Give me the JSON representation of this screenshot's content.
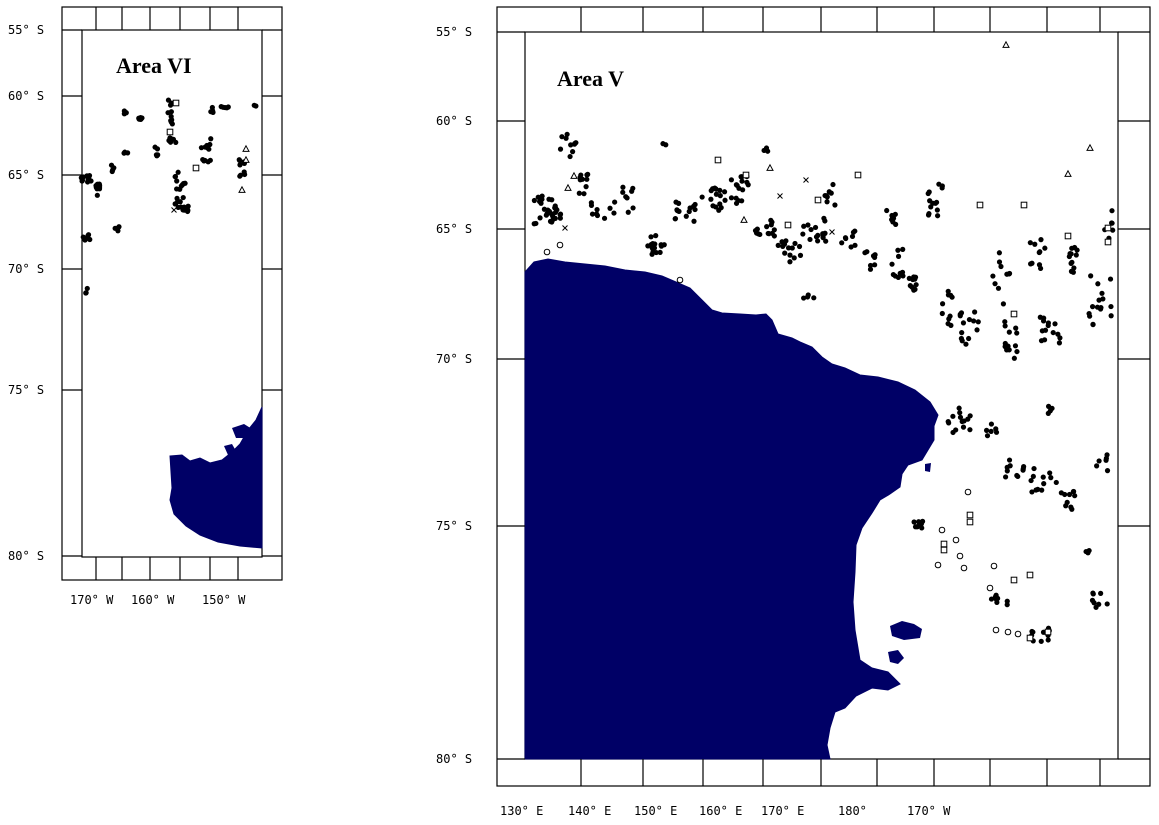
{
  "maps": [
    {
      "id": "area-vi",
      "title": "Area VI",
      "lat_labels": [
        "55° S",
        "60° S",
        "65° S",
        "70° S",
        "75° S",
        "80° S"
      ],
      "lon_labels": [
        "170° W",
        "160° W",
        "150° W"
      ],
      "land_color": "#000066",
      "markers": "mostly filled circles (•) with a few open squares (□), open triangles (△) and crosses (×)"
    },
    {
      "id": "area-v",
      "title": "Area V",
      "lat_labels": [
        "55° S",
        "60° S",
        "65° S",
        "70° S",
        "75° S",
        "80° S"
      ],
      "lon_labels": [
        "130° E",
        "140° E",
        "150° E",
        "160° E",
        "170° E",
        "180°",
        "170° W"
      ],
      "land_color": "#000066",
      "markers": "filled circles (•), open squares (□), open circles (○), open triangles (△), crosses (×)"
    }
  ],
  "colors": {
    "land": "#000066",
    "frame": "#000000",
    "marker": "#000000",
    "background": "#ffffff"
  }
}
